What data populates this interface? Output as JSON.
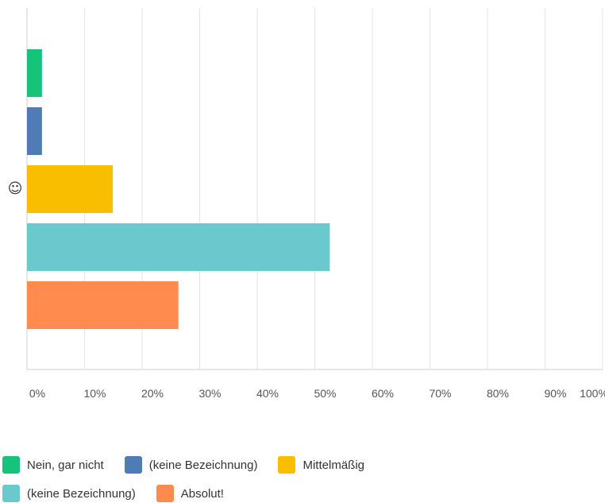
{
  "chart_data": {
    "type": "bar",
    "orientation": "horizontal",
    "categories": [
      "☺"
    ],
    "series": [
      {
        "name": "Nein, gar nicht",
        "values": [
          2.6
        ],
        "color": "#17c37b"
      },
      {
        "name": "(keine Bezeichnung)",
        "values": [
          2.6
        ],
        "color": "#507cb6"
      },
      {
        "name": "Mittelmäßig",
        "values": [
          14.9
        ],
        "color": "#f9be00"
      },
      {
        "name": "(keine Bezeichnung)",
        "values": [
          52.6
        ],
        "color": "#6bc8cd"
      },
      {
        "name": "Absolut!",
        "values": [
          26.3
        ],
        "color": "#ff8b4f"
      }
    ],
    "xlim": [
      0,
      100
    ],
    "x_ticks": [
      "0%",
      "10%",
      "20%",
      "30%",
      "40%",
      "50%",
      "60%",
      "70%",
      "80%",
      "90%",
      "100%"
    ],
    "grid": true,
    "legend_position": "bottom"
  }
}
